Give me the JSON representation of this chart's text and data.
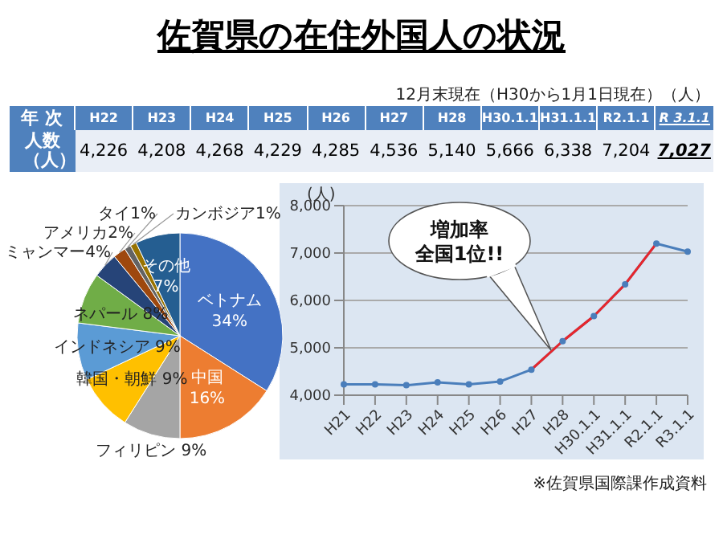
{
  "chart_data": [
    {
      "type": "other",
      "title": "佐賀県の在住外国人の状況",
      "xlabel": "年 次",
      "ylabel": "人数（人）",
      "annotations": [
        "12月末現在（H30から1月1日現在）（人）"
      ],
      "categories": [
        "H22",
        "H23",
        "H24",
        "H25",
        "H26",
        "H27",
        "H28",
        "H30.1.1",
        "H31.1.1",
        "R2.1.1",
        "R 3.1.1"
      ],
      "values": [
        4226,
        4208,
        4268,
        4229,
        4285,
        4536,
        5140,
        5666,
        6338,
        7204,
        7027
      ],
      "value_labels": [
        "4,226",
        "4,208",
        "4,268",
        "4,229",
        "4,285",
        "4,536",
        "5,140",
        "5,666",
        "6,338",
        "7,204",
        "7,027"
      ]
    },
    {
      "type": "pie",
      "categories": [
        "ベトナム",
        "中国",
        "フィリピン",
        "韓国・朝鮮",
        "インドネシア",
        "ネパール",
        "ミャンマー",
        "アメリカ",
        "タイ",
        "カンボジア",
        "その他"
      ],
      "values": [
        34,
        16,
        9,
        9,
        9,
        8,
        4,
        2,
        1,
        1,
        7
      ],
      "value_labels": [
        "34%",
        "16%",
        "9%",
        "9%",
        "9%",
        "8%",
        "4%",
        "2%",
        "1%",
        "1%",
        "7%"
      ],
      "colors": [
        "#4472c4",
        "#ed7d31",
        "#a5a5a5",
        "#ffc000",
        "#5b9bd5",
        "#70ad47",
        "#264478",
        "#9e480e",
        "#636363",
        "#997300",
        "#255e91"
      ]
    },
    {
      "type": "line",
      "ylabel": "(人)",
      "categories": [
        "H21",
        "H22",
        "H23",
        "H24",
        "H25",
        "H26",
        "H27",
        "H28",
        "H30.1.1",
        "H31.1.1",
        "R2.1.1",
        "R3.1.1"
      ],
      "series": [
        {
          "color": "#4a7ebb",
          "values": [
            4230,
            4230,
            4210,
            4270,
            4230,
            4290,
            4540,
            5140,
            5670,
            6340,
            7200,
            7030
          ]
        },
        {
          "color": "#e8262b",
          "marker": "none",
          "values": [
            null,
            null,
            null,
            null,
            null,
            null,
            4540,
            5140,
            5670,
            6340,
            7200,
            null
          ]
        }
      ],
      "ylim": [
        4000,
        8000
      ],
      "yticks": [
        {
          "value": 4000,
          "label": "4,000"
        },
        {
          "value": 5000,
          "label": "5,000"
        },
        {
          "value": 6000,
          "label": "6,000"
        },
        {
          "value": 7000,
          "label": "7,000"
        },
        {
          "value": 8000,
          "label": "8,000"
        }
      ],
      "grid": "y",
      "marker": "circle",
      "line_style": "solid",
      "annotations": [
        "増加率",
        "全国1位!!",
        "※佐賀県国際課作成資料"
      ]
    }
  ]
}
